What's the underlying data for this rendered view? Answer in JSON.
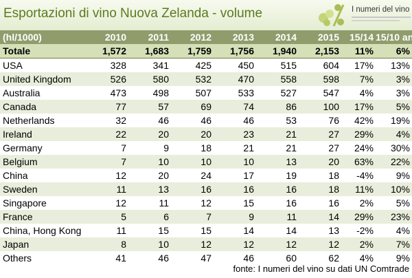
{
  "title": "Esportazioni di vino Nuova Zelanda - volume",
  "logo": {
    "name": "I numeri del vino"
  },
  "source": "fonte: I numeri del vino su dati UN Comtrade",
  "colors": {
    "header": "#8f9c6c",
    "total_row": "#d5e0b8",
    "alt_row": "#e8eedb",
    "title": "#5b7a1e"
  },
  "chart_data": {
    "type": "table",
    "title": "Esportazioni di vino Nuova Zelanda - volume",
    "columns": [
      "(hl/1000)",
      "2010",
      "2011",
      "2012",
      "2013",
      "2014",
      "2015",
      "15/14",
      "15/10 an"
    ],
    "rows": [
      [
        "Totale",
        "1,572",
        "1,683",
        "1,759",
        "1,756",
        "1,940",
        "2,153",
        "11%",
        "6%"
      ],
      [
        "USA",
        "328",
        "341",
        "425",
        "450",
        "515",
        "604",
        "17%",
        "13%"
      ],
      [
        "United Kingdom",
        "526",
        "580",
        "532",
        "470",
        "558",
        "598",
        "7%",
        "3%"
      ],
      [
        "Australia",
        "473",
        "498",
        "507",
        "533",
        "527",
        "547",
        "4%",
        "3%"
      ],
      [
        "Canada",
        "77",
        "57",
        "69",
        "74",
        "86",
        "100",
        "17%",
        "5%"
      ],
      [
        "Netherlands",
        "32",
        "46",
        "46",
        "46",
        "53",
        "76",
        "42%",
        "19%"
      ],
      [
        "Ireland",
        "22",
        "20",
        "20",
        "23",
        "21",
        "27",
        "29%",
        "4%"
      ],
      [
        "Germany",
        "7",
        "9",
        "18",
        "21",
        "21",
        "27",
        "24%",
        "30%"
      ],
      [
        "Belgium",
        "7",
        "10",
        "10",
        "10",
        "13",
        "20",
        "63%",
        "22%"
      ],
      [
        "China",
        "12",
        "20",
        "24",
        "17",
        "19",
        "18",
        "-4%",
        "9%"
      ],
      [
        "Sweden",
        "11",
        "13",
        "16",
        "16",
        "16",
        "18",
        "11%",
        "10%"
      ],
      [
        "Singapore",
        "12",
        "11",
        "12",
        "15",
        "16",
        "16",
        "2%",
        "5%"
      ],
      [
        "France",
        "5",
        "6",
        "7",
        "9",
        "11",
        "14",
        "29%",
        "23%"
      ],
      [
        "China, Hong Kong",
        "11",
        "15",
        "15",
        "14",
        "14",
        "13",
        "-2%",
        "4%"
      ],
      [
        "Japan",
        "8",
        "10",
        "12",
        "12",
        "12",
        "12",
        "2%",
        "7%"
      ],
      [
        "Others",
        "41",
        "46",
        "47",
        "46",
        "60",
        "62",
        "4%",
        "9%"
      ]
    ]
  }
}
